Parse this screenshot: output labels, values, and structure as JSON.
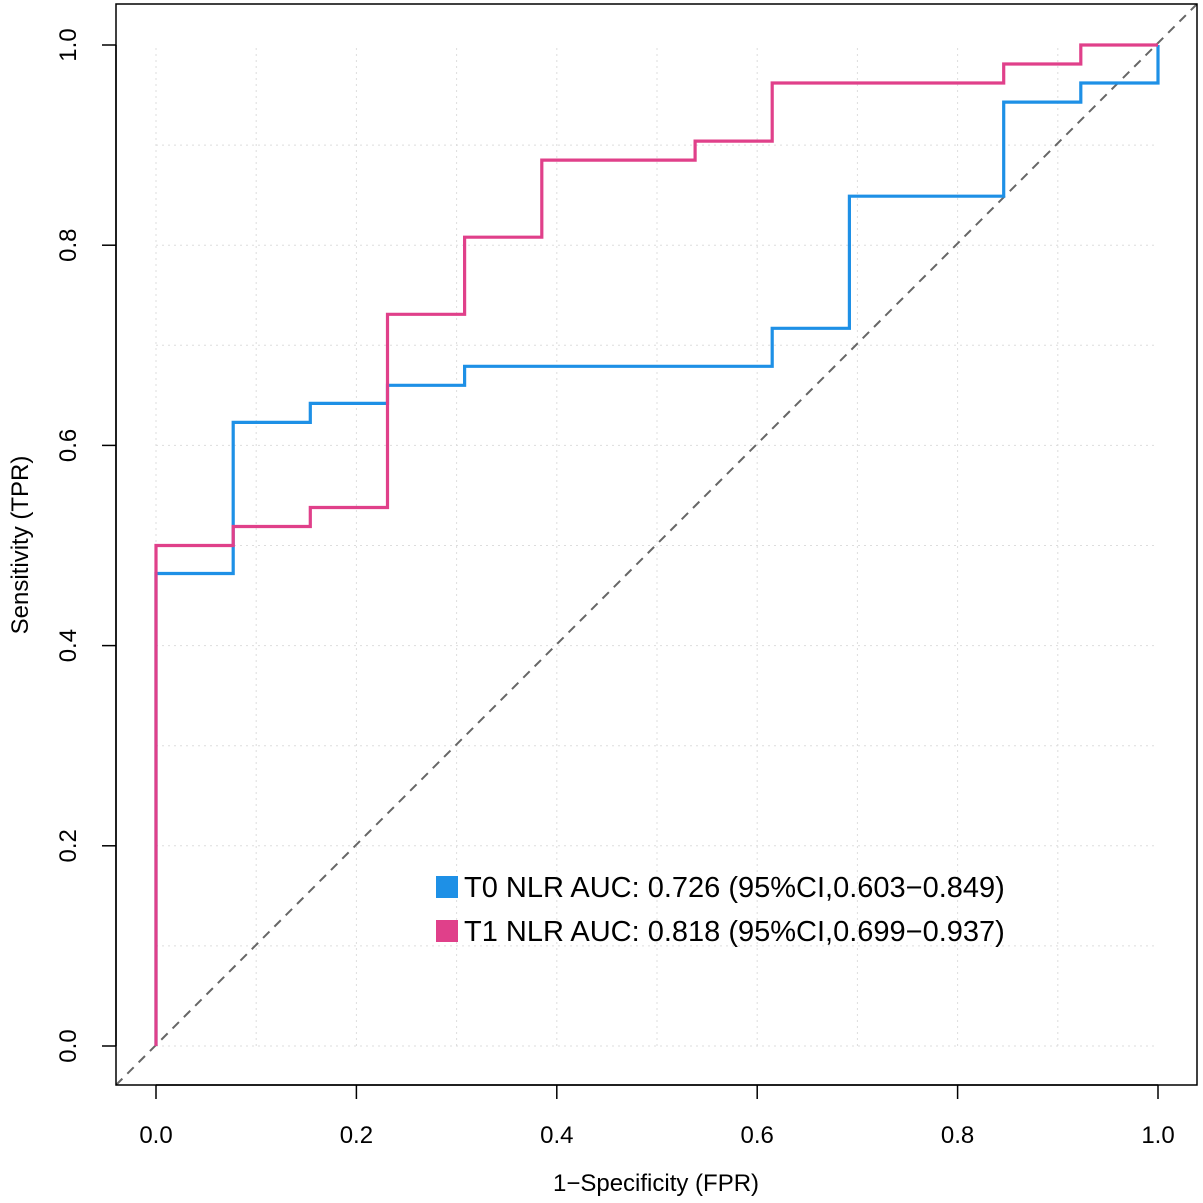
{
  "chart_data": {
    "type": "line",
    "title": "",
    "xlabel": "1−Specificity (FPR)",
    "ylabel": "Sensitivity (TPR)",
    "xlim": [
      0.0,
      1.0
    ],
    "ylim": [
      0.0,
      1.0
    ],
    "xticks": [
      "0.0",
      "0.2",
      "0.4",
      "0.6",
      "0.8",
      "1.0"
    ],
    "yticks": [
      "0.0",
      "0.2",
      "0.4",
      "0.6",
      "0.8",
      "1.0"
    ],
    "grid": true,
    "legend_position": "bottom-right",
    "reference_line": "diagonal",
    "series": [
      {
        "name": "T0 NLR",
        "label": "T0 NLR AUC: 0.726 (95%CI,0.603−0.849)",
        "color": "#1E90E6",
        "x": [
          0,
          0,
          0.077,
          0.077,
          0.154,
          0.154,
          0.231,
          0.231,
          0.308,
          0.308,
          0.615,
          0.615,
          0.692,
          0.692,
          0.846,
          0.846,
          0.923,
          0.923,
          1.0,
          1.0
        ],
        "y": [
          0,
          0.472,
          0.472,
          0.623,
          0.623,
          0.642,
          0.642,
          0.66,
          0.66,
          0.679,
          0.679,
          0.717,
          0.717,
          0.849,
          0.849,
          0.943,
          0.943,
          0.962,
          0.962,
          1.0
        ]
      },
      {
        "name": "T1 NLR",
        "label": "T1 NLR AUC: 0.818 (95%CI,0.699−0.937)",
        "color": "#E0408A",
        "x": [
          0,
          0,
          0.077,
          0.077,
          0.154,
          0.154,
          0.231,
          0.231,
          0.308,
          0.308,
          0.385,
          0.385,
          0.538,
          0.538,
          0.615,
          0.615,
          0.846,
          0.846,
          0.923,
          0.923,
          1.0
        ],
        "y": [
          0,
          0.5,
          0.5,
          0.519,
          0.519,
          0.538,
          0.538,
          0.731,
          0.731,
          0.808,
          0.808,
          0.885,
          0.885,
          0.904,
          0.904,
          0.962,
          0.962,
          0.981,
          0.981,
          1.0,
          1.0
        ]
      }
    ]
  }
}
